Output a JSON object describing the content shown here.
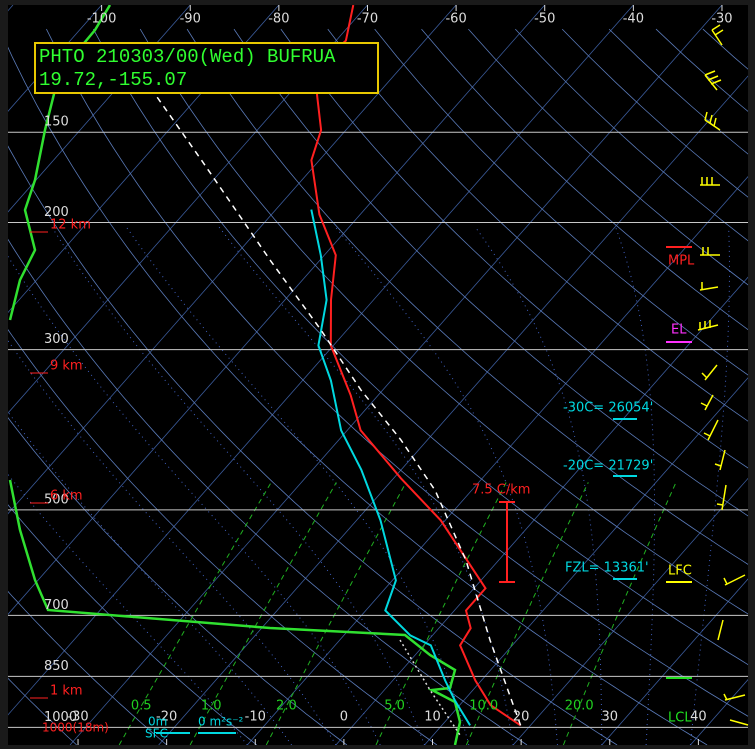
{
  "chart_data": {
    "type": "skewt",
    "title": "PHTO 210303/00(Wed) BUFRUA",
    "subtitle": "19.72,-155.07",
    "xlim": [
      -37,
      46.5
    ],
    "ylim": [
      1058,
      100
    ],
    "log_y": true,
    "xticks_top": [
      -100,
      -90,
      -80,
      -70,
      -60,
      -50,
      -40,
      -30
    ],
    "xticks": [
      -30,
      -20,
      -10,
      0,
      10,
      20,
      30,
      40
    ],
    "yticks": [
      150,
      200,
      300,
      500,
      700,
      850,
      1000
    ],
    "height_labels": [
      "12 km",
      "9 km",
      "6 km",
      "1 km"
    ],
    "mixing_ratios": [
      {
        "value": 0.5,
        "label": "0.5"
      },
      {
        "value": 1,
        "label": "1.0"
      },
      {
        "value": 2,
        "label": "2.0"
      },
      {
        "value": 5,
        "label": "5.0"
      },
      {
        "value": 10,
        "label": "10.0"
      },
      {
        "value": 20,
        "label": "20.0"
      }
    ],
    "series": [
      {
        "color": "#ff2020",
        "style": "solid",
        "pressure": [
          994,
          932,
          861,
          770,
          729,
          689,
          642,
          517,
          452,
          388,
          347,
          296,
          256,
          222,
          195,
          164,
          149,
          133,
          119,
          112,
          100
        ],
        "values": [
          18.9,
          13.5,
          9.3,
          4.1,
          3.6,
          1.3,
          1.3,
          -10.5,
          -19.2,
          -28.5,
          -33.1,
          -40.3,
          -44.8,
          -48.7,
          -54.6,
          -60.9,
          -62.8,
          -66.8,
          -69.5,
          -68.9,
          -71.6
        ]
      },
      {
        "color": "#00d8e0",
        "style": "solid",
        "pressure": [
          994,
          918,
          861,
          770,
          746,
          689,
          626,
          517,
          440,
          388,
          331,
          296,
          256,
          222,
          192
        ],
        "values": [
          13.2,
          9.0,
          5.9,
          0.8,
          -2.5,
          -7.8,
          -9.6,
          -17.3,
          -24.5,
          -30.7,
          -36.8,
          -41.7,
          -45.3,
          -50.4,
          -56.0
        ]
      },
      {
        "color": "#ffffff",
        "style": "dashed",
        "pressure": [
          994,
          758,
          587,
          470,
          400,
          341,
          282,
          226,
          164,
          131
        ],
        "values": [
          18.9,
          7.0,
          -3.7,
          -14.1,
          -23.0,
          -32.5,
          -42.9,
          -55.5,
          -73.3,
          -85.9
        ]
      }
    ],
    "annotations": [
      {
        "text": "MPL",
        "color": "#ff2020"
      },
      {
        "text": "EL",
        "color": "#ff30ff"
      },
      {
        "text": "LFC",
        "color": "#ffff00"
      },
      {
        "text": "LCL",
        "color": "#20e020"
      },
      {
        "text": "-30C= 26054'",
        "color": "#00d8e0"
      },
      {
        "text": "-20C= 21729'",
        "color": "#00d8e0"
      },
      {
        "text": "FZL= 13361'",
        "color": "#00d8e0"
      },
      {
        "text": "7.5 C/km",
        "color": "#ff2020"
      },
      {
        "text": "0m",
        "color": "#00d8e0"
      },
      {
        "text": "0 m²s⁻²",
        "color": "#00d8e0"
      },
      {
        "text": "SFC",
        "color": "#00d8e0"
      },
      {
        "text": "1000(18m)",
        "color": "#ff2020"
      }
    ]
  }
}
